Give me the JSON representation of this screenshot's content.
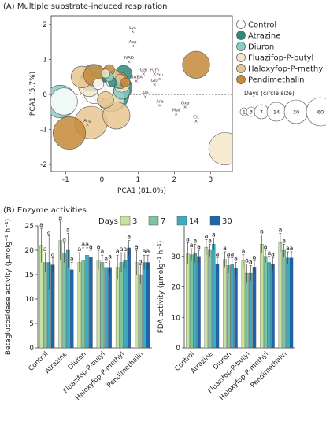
{
  "panelA": {
    "heading": "(A) Multiple substrate-induced respiration",
    "chart_data": {
      "type": "scatter",
      "xlabel": "PCA1 (81.0%)",
      "ylabel": "PCA1 (5.7%)",
      "xlim": [
        -1.4,
        3.6
      ],
      "ylim": [
        -2.2,
        2.25
      ],
      "xticks": [
        -1,
        0,
        1,
        2,
        3
      ],
      "yticks": [
        -2,
        -1,
        0,
        1,
        2
      ],
      "legend": [
        {
          "name": "Control",
          "color": "#ffffff"
        },
        {
          "name": "Atrazine",
          "color": "#2a8a7c"
        },
        {
          "name": "Diuron",
          "color": "#86cfc4"
        },
        {
          "name": "Fluazifop-P-butyl",
          "color": "#f4e6c9"
        },
        {
          "name": "Haloxyfop-P-methyl",
          "color": "#e8c691"
        },
        {
          "name": "Pendimethalin",
          "color": "#c58a3a"
        }
      ],
      "size_legend": {
        "title": "Days (circle size)",
        "labels": [
          "1",
          "3",
          "7",
          "14",
          "30",
          "60"
        ],
        "r": [
          5,
          6,
          9,
          12,
          15,
          18
        ]
      },
      "substrates": [
        {
          "name": "Lys",
          "x": 0.85,
          "y": 1.8
        },
        {
          "name": "Asp",
          "x": 0.85,
          "y": 1.4
        },
        {
          "name": "NAD",
          "x": 0.75,
          "y": 0.95
        },
        {
          "name": "Gal",
          "x": 1.15,
          "y": 0.6
        },
        {
          "name": "Fum",
          "x": 1.45,
          "y": 0.6
        },
        {
          "name": "Fru",
          "x": 1.6,
          "y": 0.45
        },
        {
          "name": "Glu",
          "x": 1.45,
          "y": 0.3
        },
        {
          "name": "GABA",
          "x": 0.95,
          "y": 0.4
        },
        {
          "name": "Ala",
          "x": 1.2,
          "y": -0.05
        },
        {
          "name": "Ara",
          "x": 1.6,
          "y": -0.3
        },
        {
          "name": "Oxa",
          "x": 2.3,
          "y": -0.35
        },
        {
          "name": "Mal",
          "x": 2.05,
          "y": -0.55
        },
        {
          "name": "Cit",
          "x": 2.6,
          "y": -0.75
        },
        {
          "name": "Arg",
          "x": -0.4,
          "y": -0.85
        }
      ],
      "circles": [
        {
          "t": 0,
          "x": -1.05,
          "y": -0.2,
          "d": 30
        },
        {
          "t": 0,
          "x": -0.2,
          "y": 0.05,
          "d": 14
        },
        {
          "t": 0,
          "x": 0.1,
          "y": 0.1,
          "d": 7
        },
        {
          "t": 0,
          "x": -0.1,
          "y": 0.3,
          "d": 3
        },
        {
          "t": 0,
          "x": 0.25,
          "y": 0.35,
          "d": 1
        },
        {
          "t": 0,
          "x": 0.15,
          "y": 0.15,
          "d": 60
        },
        {
          "t": 1,
          "x": 0.6,
          "y": 0.6,
          "d": 7
        },
        {
          "t": 1,
          "x": 0.15,
          "y": 0.5,
          "d": 3
        },
        {
          "t": 1,
          "x": -0.3,
          "y": 0.4,
          "d": 14
        },
        {
          "t": 1,
          "x": 0.45,
          "y": 0.2,
          "d": 30
        },
        {
          "t": 1,
          "x": 0.3,
          "y": 0.35,
          "d": 1
        },
        {
          "t": 1,
          "x": 0.3,
          "y": 0.0,
          "d": 60
        },
        {
          "t": 2,
          "x": -1.15,
          "y": -0.2,
          "d": 60
        },
        {
          "t": 2,
          "x": 0.55,
          "y": 0.1,
          "d": 7
        },
        {
          "t": 2,
          "x": 0.4,
          "y": 0.35,
          "d": 3
        },
        {
          "t": 2,
          "x": -0.25,
          "y": 0.55,
          "d": 14
        },
        {
          "t": 2,
          "x": 0.15,
          "y": 0.05,
          "d": 30
        },
        {
          "t": 2,
          "x": 0.2,
          "y": 0.5,
          "d": 1
        },
        {
          "t": 3,
          "x": 3.4,
          "y": -1.55,
          "d": 60
        },
        {
          "t": 3,
          "x": 0.25,
          "y": -0.1,
          "d": 30
        },
        {
          "t": 3,
          "x": -0.35,
          "y": 0.25,
          "d": 14
        },
        {
          "t": 3,
          "x": 0.55,
          "y": 0.3,
          "d": 7
        },
        {
          "t": 3,
          "x": 0.3,
          "y": 0.45,
          "d": 3
        },
        {
          "t": 3,
          "x": 0.1,
          "y": 0.6,
          "d": 1
        },
        {
          "t": 4,
          "x": -0.3,
          "y": -0.8,
          "d": 60
        },
        {
          "t": 4,
          "x": 0.4,
          "y": -0.6,
          "d": 30
        },
        {
          "t": 4,
          "x": -0.55,
          "y": 0.5,
          "d": 14
        },
        {
          "t": 4,
          "x": 0.1,
          "y": -0.15,
          "d": 7
        },
        {
          "t": 4,
          "x": 0.35,
          "y": 0.55,
          "d": 3
        },
        {
          "t": 4,
          "x": 0.5,
          "y": 0.45,
          "d": 1
        },
        {
          "t": 5,
          "x": 2.6,
          "y": 0.85,
          "d": 30
        },
        {
          "t": 5,
          "x": -0.9,
          "y": -1.1,
          "d": 60
        },
        {
          "t": 5,
          "x": -0.2,
          "y": 0.55,
          "d": 14
        },
        {
          "t": 5,
          "x": 0.5,
          "y": 0.4,
          "d": 7
        },
        {
          "t": 5,
          "x": 0.2,
          "y": 0.7,
          "d": 3
        },
        {
          "t": 5,
          "x": 0.65,
          "y": 0.35,
          "d": 1
        }
      ]
    }
  },
  "panelB": {
    "heading": "(B) Enzyme activities",
    "legend_title": "Days",
    "legend": [
      {
        "name": "3",
        "color": "#c5e29e"
      },
      {
        "name": "7",
        "color": "#7fc4a0"
      },
      {
        "name": "14",
        "color": "#3cadc0"
      },
      {
        "name": "30",
        "color": "#1f66ad"
      }
    ],
    "chart_data": [
      {
        "type": "bar",
        "ylabel": "Betaglucosidase activity (μmolg⁻¹ h⁻¹)",
        "ylim": [
          0,
          25
        ],
        "yticks": [
          0,
          5,
          10,
          15,
          20,
          25
        ],
        "categories": [
          "Control",
          "Atrazine",
          "Diuron",
          "Fluazifop-P-butyl",
          "Haloxyfop-P-methyl",
          "Pendimethalin"
        ],
        "series": [
          {
            "name": "3",
            "values": [
              21.0,
              22.0,
              17.5,
              18.0,
              16.5,
              17.5
            ],
            "errors": [
              3.5,
              4.0,
              2.0,
              2.0,
              2.5,
              2.5
            ]
          },
          {
            "name": "7",
            "values": [
              17.5,
              19.5,
              18.0,
              17.5,
              17.5,
              15.0
            ],
            "errors": [
              2.0,
              2.0,
              2.5,
              1.5,
              2.0,
              2.0
            ]
          },
          {
            "name": "14",
            "values": [
              17.5,
              20.0,
              19.0,
              16.5,
              18.0,
              17.5
            ],
            "errors": [
              5.5,
              3.5,
              1.5,
              1.0,
              1.5,
              1.5
            ]
          },
          {
            "name": "30",
            "values": [
              17.0,
              16.0,
              18.5,
              16.5,
              20.5,
              17.5
            ],
            "errors": [
              1.5,
              1.5,
              1.5,
              1.5,
              1.5,
              1.5
            ]
          }
        ],
        "letter": "a"
      },
      {
        "type": "bar",
        "ylabel": "FDA activity (μmolg⁻¹ h⁻¹)",
        "ylim": [
          0,
          40
        ],
        "yticks": [
          0,
          10,
          20,
          30
        ],
        "categories": [
          "Control",
          "Atrazine",
          "Diuron",
          "Fluazifop-P-butyl",
          "Haloxyfop-P-methyl",
          "Pendimethalin"
        ],
        "series": [
          {
            "name": "3",
            "values": [
              31.0,
              33.0,
              29.0,
              28.5,
              34.0,
              34.5
            ],
            "errors": [
              3.5,
              2.5,
              2.5,
              2.0,
              3.0,
              3.0
            ]
          },
          {
            "name": "7",
            "values": [
              30.5,
              32.0,
              27.0,
              24.5,
              30.0,
              32.0
            ],
            "errors": [
              2.0,
              2.0,
              2.5,
              3.0,
              2.0,
              2.0
            ]
          },
          {
            "name": "14",
            "values": [
              31.0,
              34.0,
              27.5,
              24.5,
              28.0,
              29.5
            ],
            "errors": [
              3.0,
              2.0,
              2.0,
              2.5,
              2.0,
              2.0
            ]
          },
          {
            "name": "30",
            "values": [
              30.0,
              27.5,
              26.0,
              26.5,
              27.5,
              29.5
            ],
            "errors": [
              2.0,
              2.0,
              2.0,
              2.0,
              2.0,
              2.0
            ]
          }
        ],
        "letter": "a"
      }
    ]
  }
}
